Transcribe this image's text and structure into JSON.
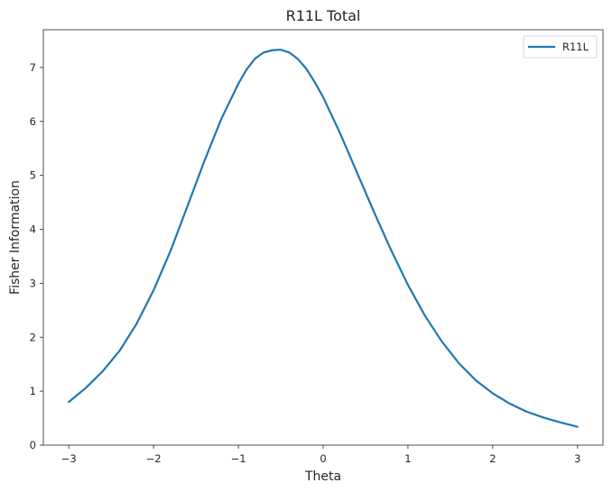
{
  "chart_data": {
    "type": "line",
    "title": "R11L Total",
    "xlabel": "Theta",
    "ylabel": "Fisher Information",
    "xlim": [
      -3.3,
      3.3
    ],
    "ylim": [
      0,
      7.7
    ],
    "xticks": [
      -3,
      -2,
      -1,
      0,
      1,
      2,
      3
    ],
    "xtick_labels": [
      "−3",
      "−2",
      "−1",
      "0",
      "1",
      "2",
      "3"
    ],
    "yticks": [
      0,
      1,
      2,
      3,
      4,
      5,
      6,
      7
    ],
    "ytick_labels": [
      "0",
      "1",
      "2",
      "3",
      "4",
      "5",
      "6",
      "7"
    ],
    "grid": false,
    "legend": {
      "placement": "top-right",
      "entries": [
        "R11L"
      ]
    },
    "series": [
      {
        "name": "R11L",
        "color": "#1f77b4",
        "x": [
          -3.0,
          -2.8,
          -2.6,
          -2.4,
          -2.2,
          -2.0,
          -1.8,
          -1.6,
          -1.4,
          -1.2,
          -1.0,
          -0.9,
          -0.8,
          -0.7,
          -0.6,
          -0.5,
          -0.4,
          -0.3,
          -0.2,
          -0.1,
          0.0,
          0.2,
          0.4,
          0.6,
          0.8,
          1.0,
          1.2,
          1.4,
          1.6,
          1.8,
          2.0,
          2.2,
          2.4,
          2.6,
          2.8,
          3.0
        ],
        "y": [
          0.8,
          1.06,
          1.37,
          1.75,
          2.25,
          2.87,
          3.6,
          4.43,
          5.27,
          6.05,
          6.7,
          6.97,
          7.17,
          7.28,
          7.32,
          7.33,
          7.28,
          7.16,
          6.98,
          6.73,
          6.45,
          5.78,
          5.05,
          4.32,
          3.62,
          2.97,
          2.4,
          1.92,
          1.52,
          1.2,
          0.96,
          0.77,
          0.62,
          0.51,
          0.42,
          0.34
        ]
      }
    ]
  }
}
